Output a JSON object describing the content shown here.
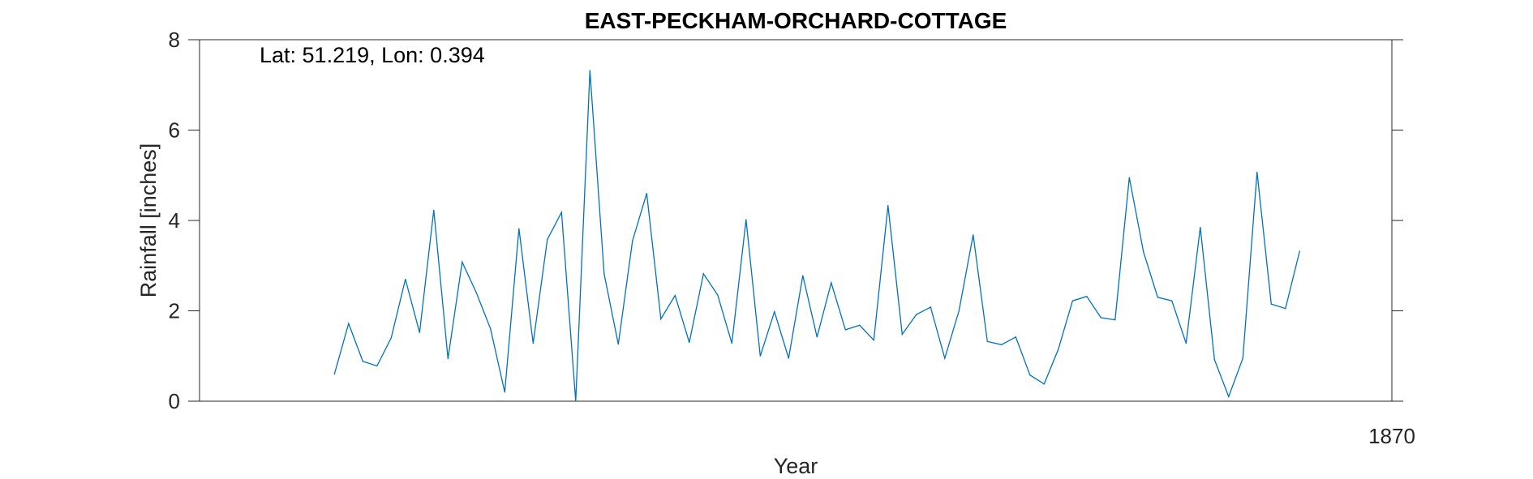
{
  "chart_data": {
    "type": "line",
    "title": "EAST-PECKHAM-ORCHARD-COTTAGE",
    "annotation": "Lat: 51.219, Lon: 0.394",
    "xlabel": "Year",
    "ylabel": "Rainfall [inches]",
    "xlim": [
      1786,
      1870
    ],
    "ylim": [
      0,
      8
    ],
    "yticks": [
      0,
      2,
      4,
      6,
      8
    ],
    "xticks": [
      1870
    ],
    "xtick_labels": [
      "1870"
    ],
    "grid": false,
    "series": [
      {
        "color": "#0072BD",
        "x": [
          1795.5,
          1796.5,
          1797.5,
          1798.5,
          1799.5,
          1800.5,
          1801.5,
          1802.5,
          1803.5,
          1804.5,
          1805.5,
          1806.5,
          1807.5,
          1808.5,
          1809.5,
          1810.5,
          1811.5,
          1812.5,
          1813.5,
          1814.5,
          1815.5,
          1816.5,
          1817.5,
          1818.5,
          1819.5,
          1820.5,
          1821.5,
          1822.5,
          1823.5,
          1824.5,
          1825.5,
          1826.5,
          1827.5,
          1828.5,
          1829.5,
          1830.5,
          1831.5,
          1832.5,
          1833.5,
          1834.5,
          1835.5,
          1836.5,
          1837.5,
          1838.5,
          1839.5,
          1840.5,
          1841.5,
          1842.5,
          1843.5,
          1844.5,
          1845.5,
          1846.5,
          1847.5,
          1848.5,
          1849.5,
          1850.5,
          1851.5,
          1852.5,
          1853.5,
          1854.5,
          1855.5,
          1856.5,
          1857.5,
          1858.5,
          1859.5,
          1860.5,
          1861.5,
          1862.5,
          1863.5
        ],
        "values": [
          0.6,
          1.72,
          0.88,
          0.78,
          1.4,
          2.7,
          1.52,
          4.23,
          0.94,
          3.08,
          2.4,
          1.6,
          0.2,
          3.82,
          1.28,
          3.58,
          4.18,
          0.0,
          7.32,
          2.82,
          1.26,
          3.55,
          4.6,
          1.82,
          2.34,
          1.3,
          2.82,
          2.35,
          1.28,
          4.02,
          1.0,
          1.98,
          0.95,
          2.78,
          1.42,
          2.62,
          1.58,
          1.68,
          1.35,
          4.33,
          1.48,
          1.92,
          2.08,
          0.95,
          2.0,
          3.68,
          1.32,
          1.25,
          1.42,
          0.58,
          0.38,
          1.15,
          2.22,
          2.32,
          1.85,
          1.8,
          4.95,
          3.3,
          2.3,
          2.22,
          1.28,
          3.85,
          0.92,
          0.1,
          0.95,
          5.07,
          2.15,
          2.05,
          3.32
        ]
      }
    ]
  }
}
